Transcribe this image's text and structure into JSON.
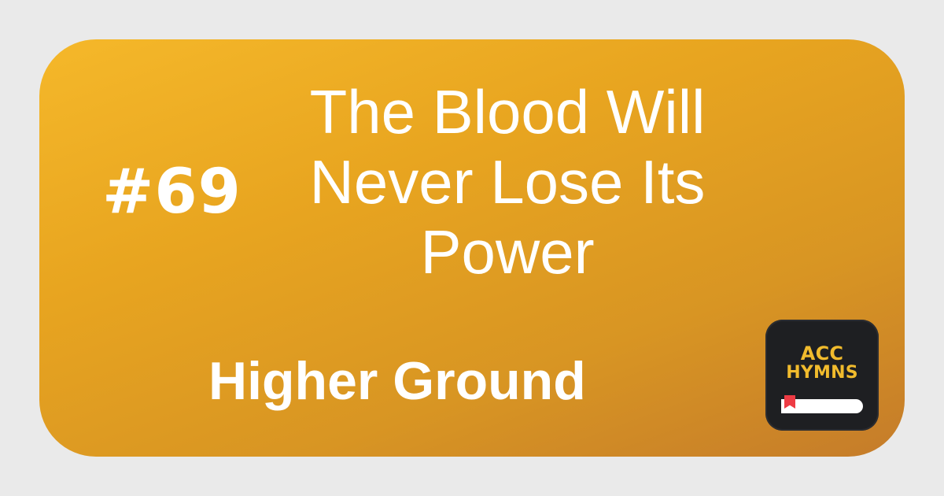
{
  "hymn": {
    "number": "#69",
    "title": "The Blood Will Never Lose Its Power",
    "tune": "Higher Ground"
  },
  "logo": {
    "line1": "ACC",
    "line2": "HYMNS",
    "icon": "book-icon",
    "bookmark_color": "#EE3B44"
  },
  "colors": {
    "background": "#EAEAEA",
    "card_start": "#F5B82A",
    "card_end": "#C57C2A",
    "text": "#FFFFFF",
    "logo_background": "#1E1F22",
    "logo_text": "#F1BB2D"
  }
}
